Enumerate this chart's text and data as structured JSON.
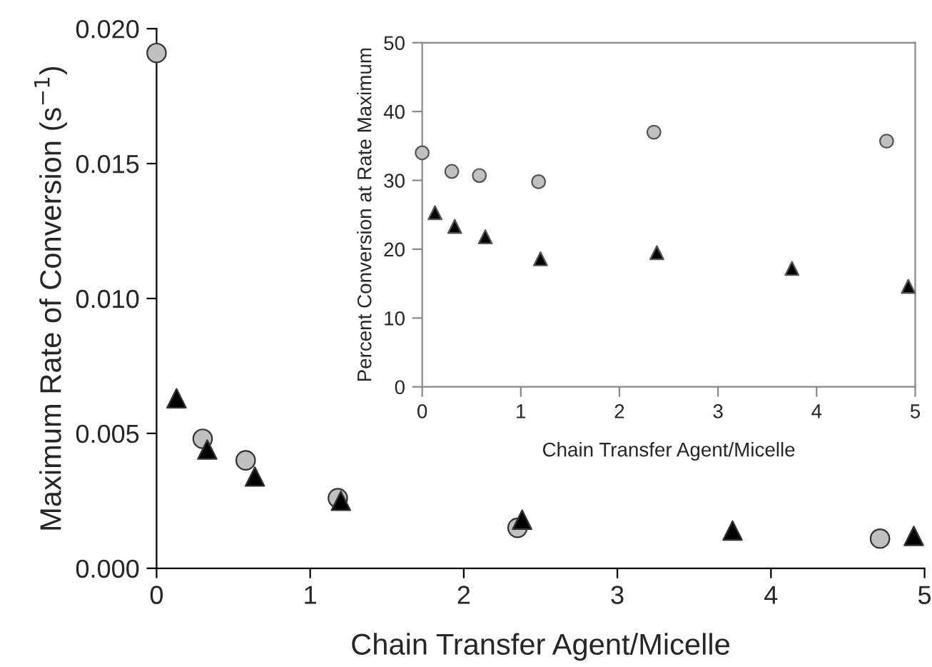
{
  "chart_data": [
    {
      "type": "scatter",
      "xlabel": "Chain Transfer Agent/Micelle",
      "ylabel": "Maximum Rate of Conversion (s$^{−1}$)",
      "xlim": [
        0,
        5
      ],
      "xticks": [
        0,
        1,
        2,
        3,
        4,
        5
      ],
      "ylim": [
        0,
        0.02
      ],
      "yticks": [
        {
          "value": 0,
          "label": "0.000"
        },
        {
          "value": 0.005,
          "label": "0.005"
        },
        {
          "value": 0.01,
          "label": "0.010"
        },
        {
          "value": 0.015,
          "label": "0.015"
        },
        {
          "value": 0.02,
          "label": "0.020"
        }
      ],
      "grid": false,
      "series": [
        {
          "color": "#c0c0c0",
          "marker": "circle",
          "x": [
            0,
            0.3,
            0.58,
            1.18,
            2.35,
            4.71
          ],
          "values": [
            0.0191,
            0.0048,
            0.004,
            0.0026,
            0.0015,
            0.0011
          ]
        },
        {
          "color": "#000000",
          "marker": "triangle",
          "x": [
            0.13,
            0.33,
            0.64,
            1.2,
            2.38,
            3.75,
            4.93
          ],
          "values": [
            0.0063,
            0.0044,
            0.0034,
            0.0025,
            0.0018,
            0.0014,
            0.0012
          ]
        }
      ]
    },
    {
      "type": "scatter",
      "xlabel": "Chain Transfer Agent/Micelle",
      "ylabel": "Percent Conversion at Rate Maximum",
      "xlim": [
        0,
        5
      ],
      "xticks": [
        0,
        1,
        2,
        3,
        4,
        5
      ],
      "ylim": [
        0,
        50
      ],
      "yticks": [
        0,
        10,
        20,
        30,
        40,
        50
      ],
      "grid": false,
      "series": [
        {
          "color": "#c0c0c0",
          "marker": "circle",
          "x": [
            0,
            0.3,
            0.58,
            1.18,
            2.35,
            4.71
          ],
          "values": [
            34,
            31.3,
            30.7,
            29.8,
            37,
            35.7
          ]
        },
        {
          "color": "#000000",
          "marker": "triangle",
          "x": [
            0.13,
            0.33,
            0.64,
            1.2,
            2.38,
            3.75,
            4.93
          ],
          "values": [
            25.3,
            23.3,
            21.8,
            18.6,
            19.5,
            17.2,
            14.6
          ]
        }
      ]
    }
  ]
}
